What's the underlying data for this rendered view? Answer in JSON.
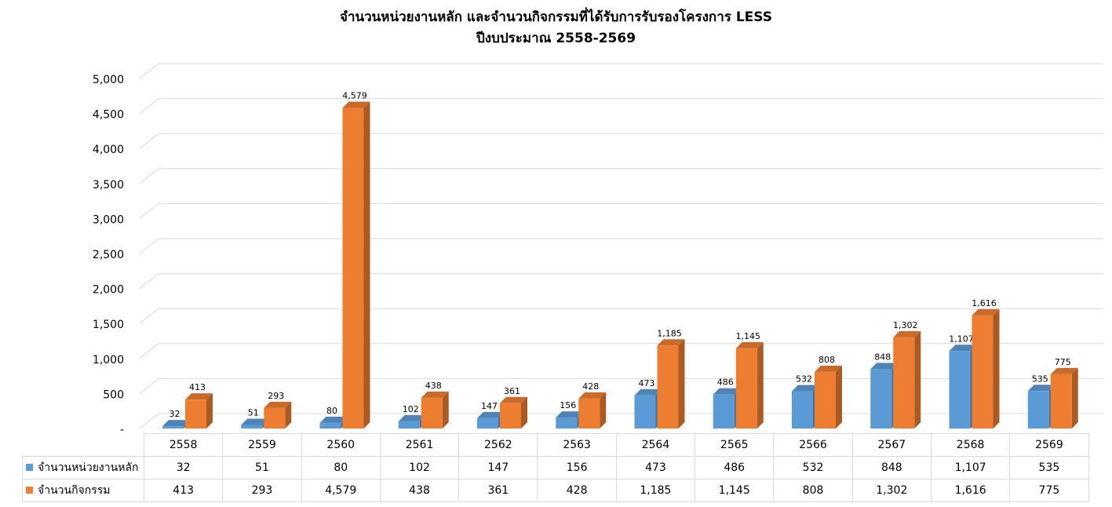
{
  "chart_data": {
    "type": "bar",
    "title": "จำนวนหน่วยงานหลัก และจำนวนกิจกรรมที่ได้รับการรับรองโครงการ LESS",
    "subtitle": "ปีงบประมาณ 2558-2569",
    "categories": [
      "2558",
      "2559",
      "2560",
      "2561",
      "2562",
      "2563",
      "2564",
      "2565",
      "2566",
      "2567",
      "2568",
      "2569"
    ],
    "series": [
      {
        "name": "จำนวนหน่วยงานหลัก",
        "color": "#5b9bd5",
        "values": [
          32,
          51,
          80,
          102,
          147,
          156,
          473,
          486,
          532,
          848,
          1107,
          535
        ],
        "labels": [
          "32",
          "51",
          "80",
          "102",
          "147",
          "156",
          "473",
          "486",
          "532",
          "848",
          "1,107",
          "535"
        ]
      },
      {
        "name": "จำนวนกิจกรรม",
        "color": "#ed7d31",
        "values": [
          413,
          293,
          4579,
          438,
          361,
          428,
          1185,
          1145,
          808,
          1302,
          1616,
          775
        ],
        "labels": [
          "413",
          "293",
          "4,579",
          "438",
          "361",
          "428",
          "1,185",
          "1,145",
          "808",
          "1,302",
          "1,616",
          "775"
        ]
      }
    ],
    "ylim": [
      0,
      5000
    ],
    "yticks": [
      "-",
      "500",
      "1,000",
      "1,500",
      "2,000",
      "2,500",
      "3,000",
      "3,500",
      "4,000",
      "4,500",
      "5,000"
    ],
    "grid": true,
    "legend": "data table below chart",
    "three_d": true
  }
}
